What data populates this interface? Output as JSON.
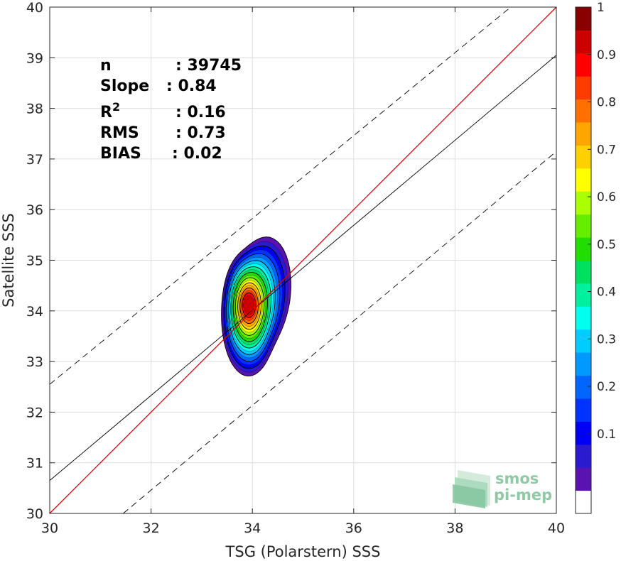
{
  "chart_data": {
    "type": "scatter",
    "subtype": "density-contour",
    "xlabel": "TSG (Polarstern) SSS",
    "ylabel": "Satellite SSS",
    "xlim": [
      30,
      40
    ],
    "ylim": [
      30,
      40
    ],
    "xticks": [
      "30",
      "32",
      "34",
      "36",
      "38",
      "40"
    ],
    "yticks": [
      "30",
      "31",
      "32",
      "33",
      "34",
      "35",
      "36",
      "37",
      "38",
      "39",
      "40"
    ],
    "grid": true,
    "stats": [
      {
        "label": "n",
        "value": ": 39745"
      },
      {
        "label": "Slope",
        "value": ": 0.84"
      },
      {
        "label": "R",
        "sup": "2",
        "value": ": 0.16"
      },
      {
        "label": "RMS",
        "value": ": 0.73"
      },
      {
        "label": "BIAS",
        "value": ": 0.02"
      }
    ],
    "lines": {
      "one_to_one": {
        "color": "#e00000",
        "points": [
          [
            30,
            30
          ],
          [
            40,
            40
          ]
        ]
      },
      "regression": {
        "color": "#000000",
        "points": [
          [
            30,
            30.65
          ],
          [
            40,
            39.05
          ]
        ]
      },
      "bounds": [
        {
          "style": "dashed",
          "points": [
            [
              30,
              32.55
            ],
            [
              39.1,
              40
            ]
          ]
        },
        {
          "style": "dashed",
          "points": [
            [
              31.45,
              30
            ],
            [
              40,
              37.15
            ]
          ]
        }
      ]
    },
    "density_center": {
      "x": 33.93,
      "y": 34.12
    },
    "density_levels": [
      0.1,
      0.2,
      0.3,
      0.4,
      0.5,
      0.6,
      0.7,
      0.8,
      0.9,
      1
    ],
    "colorbar": {
      "ticks": [
        "0.1",
        "0.2",
        "0.3",
        "0.4",
        "0.5",
        "0.6",
        "0.7",
        "0.8",
        "0.9",
        "1"
      ],
      "colors": [
        "#ffffff",
        "#5a13b0",
        "#2a1ad0",
        "#0000f5",
        "#0033ff",
        "#0066ff",
        "#0099ff",
        "#00ccff",
        "#00ffee",
        "#00f0a0",
        "#00e060",
        "#22dd00",
        "#66ee00",
        "#aaff00",
        "#ffff00",
        "#ffd000",
        "#ffa500",
        "#ff7000",
        "#ff3c00",
        "#ff0000",
        "#cc0000",
        "#880000"
      ]
    }
  },
  "logo": {
    "line1": "smos",
    "line2": "pi-mep"
  }
}
